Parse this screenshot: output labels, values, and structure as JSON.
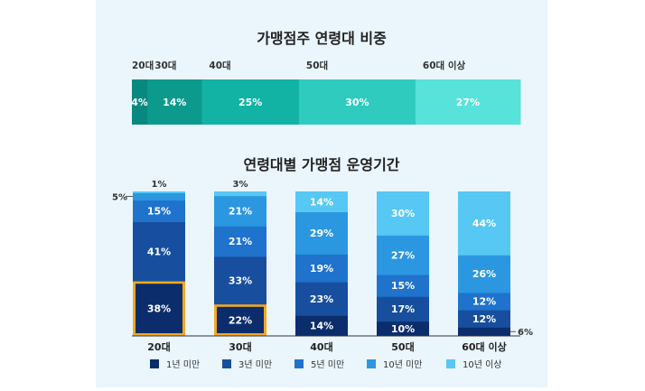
{
  "colors": {
    "panel_bg": "#eaf6fc",
    "top_segments": [
      "#08897f",
      "#0c9a8d",
      "#12b2a5",
      "#2fcbbf",
      "#57e2da"
    ],
    "tenure": [
      "#0c2d6b",
      "#174f9e",
      "#1f73cc",
      "#2b97e1",
      "#56c8f3"
    ],
    "highlight": "#f5a81f"
  },
  "chart_data": [
    {
      "type": "bar",
      "orientation": "horizontal-stacked-100",
      "title": "가맹점주 연령대 비중",
      "categories": [
        "20대",
        "30대",
        "40대",
        "50대",
        "60대 이상"
      ],
      "values": [
        4,
        14,
        25,
        30,
        27
      ],
      "value_labels": [
        "4%",
        "14%",
        "25%",
        "30%",
        "27%"
      ]
    },
    {
      "type": "bar",
      "orientation": "vertical-stacked-100",
      "title": "연령대별 가맹점 운영기간",
      "categories": [
        "20대",
        "30대",
        "40대",
        "50대",
        "60대 이상"
      ],
      "series": [
        {
          "name": "1년 미만",
          "values": [
            38,
            22,
            14,
            10,
            6
          ],
          "labels": [
            "38%",
            "22%",
            "14%",
            "10%",
            "6%"
          ]
        },
        {
          "name": "3년 미만",
          "values": [
            41,
            33,
            23,
            17,
            12
          ],
          "labels": [
            "41%",
            "33%",
            "23%",
            "17%",
            "12%"
          ]
        },
        {
          "name": "5년 미만",
          "values": [
            15,
            21,
            19,
            15,
            12
          ],
          "labels": [
            "15%",
            "21%",
            "19%",
            "15%",
            "12%"
          ]
        },
        {
          "name": "10년 미만",
          "values": [
            5,
            21,
            29,
            27,
            26
          ],
          "labels": [
            "5%",
            "21%",
            "29%",
            "27%",
            "26%"
          ]
        },
        {
          "name": "10년 이상",
          "values": [
            1,
            3,
            14,
            30,
            44
          ],
          "labels": [
            "1%",
            "3%",
            "14%",
            "30%",
            "44%"
          ]
        }
      ],
      "highlighted": [
        {
          "category": "20대",
          "series": "1년 미만"
        },
        {
          "category": "30대",
          "series": "1년 미만"
        }
      ],
      "legend": "bottom"
    }
  ]
}
